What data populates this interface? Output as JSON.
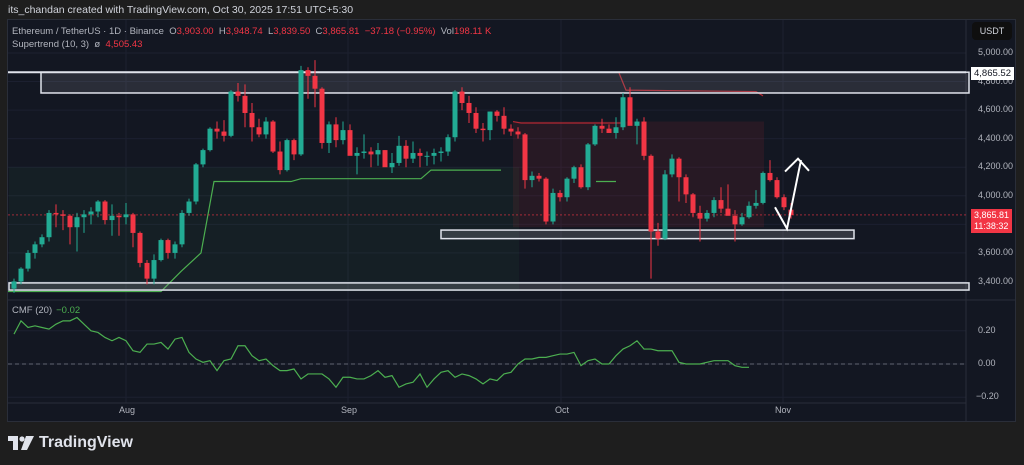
{
  "attribution": "its_chandan created with TradingView.com, Oct 30, 2025 17:51 UTC+5:30",
  "legend": {
    "symbol": "Ethereum / TetherUS · 1D · Binance",
    "o_label": "O",
    "o": "3,903.00",
    "h_label": "H",
    "h": "3,948.74",
    "l_label": "L",
    "l": "3,839.50",
    "c_label": "C",
    "c": "3,865.81",
    "change": "−37.18 (−0.95%)",
    "vol_label": "Vol",
    "vol": "198.11 K",
    "supertrend_label": "Supertrend (10, 3)",
    "supertrend_symbol": "ø",
    "supertrend_value": "4,505.43"
  },
  "cmf": {
    "label": "CMF (20)",
    "value": "−0.02"
  },
  "currency": "USDT",
  "price_axis": [
    "5,000.00",
    "4,800.00",
    "4,600.00",
    "4,400.00",
    "4,200.00",
    "4,000.00",
    "3,600.00",
    "3,400.00"
  ],
  "price_tag": "4,865.52",
  "last_price": "3,865.81",
  "countdown": "11:38:32",
  "cmf_axis": [
    "0.20",
    "0.00",
    "−0.20"
  ],
  "date_axis": [
    "Aug",
    "Sep",
    "Oct",
    "Nov"
  ],
  "logo": "TradingView",
  "colors": {
    "up": "#22ab94",
    "down": "#f23645",
    "supertrend_up": "#4caf50",
    "supertrend_down": "#b22833",
    "cmf": "#4caf50",
    "background": "#131722"
  },
  "chart_data": [
    {
      "type": "candlestick",
      "title": "Ethereum / TetherUS · 1D · Binance",
      "xlabel": "",
      "ylabel": "USDT",
      "ylim": [
        3300,
        5050
      ],
      "x_ticks": [
        "Aug",
        "Sep",
        "Oct",
        "Nov"
      ],
      "y_ticks": [
        3400,
        3600,
        4000,
        4200,
        4400,
        4600,
        4800,
        5000
      ],
      "last": {
        "open": 3903.0,
        "high": 3948.74,
        "low": 3839.5,
        "close": 3865.81,
        "change": -37.18,
        "change_pct": -0.95,
        "volume": "198.11K"
      },
      "candles": [
        [
          3350,
          3420,
          3320,
          3400
        ],
        [
          3400,
          3500,
          3380,
          3490
        ],
        [
          3490,
          3620,
          3470,
          3600
        ],
        [
          3600,
          3680,
          3560,
          3660
        ],
        [
          3660,
          3730,
          3640,
          3710
        ],
        [
          3710,
          3900,
          3680,
          3880
        ],
        [
          3880,
          3940,
          3780,
          3870
        ],
        [
          3870,
          3900,
          3760,
          3860
        ],
        [
          3860,
          3870,
          3660,
          3780
        ],
        [
          3780,
          3880,
          3610,
          3850
        ],
        [
          3850,
          3900,
          3740,
          3870
        ],
        [
          3870,
          3920,
          3800,
          3890
        ],
        [
          3890,
          3970,
          3850,
          3960
        ],
        [
          3960,
          3970,
          3800,
          3830
        ],
        [
          3830,
          3940,
          3720,
          3860
        ],
        [
          3860,
          3880,
          3720,
          3850
        ],
        [
          3850,
          3950,
          3800,
          3870
        ],
        [
          3870,
          3880,
          3640,
          3740
        ],
        [
          3740,
          3750,
          3500,
          3530
        ],
        [
          3530,
          3550,
          3380,
          3420
        ],
        [
          3420,
          3590,
          3380,
          3550
        ],
        [
          3550,
          3700,
          3540,
          3690
        ],
        [
          3690,
          3700,
          3560,
          3600
        ],
        [
          3600,
          3680,
          3560,
          3660
        ],
        [
          3660,
          3900,
          3640,
          3880
        ],
        [
          3880,
          3980,
          3860,
          3960
        ],
        [
          3960,
          4230,
          3940,
          4220
        ],
        [
          4220,
          4330,
          4200,
          4320
        ],
        [
          4320,
          4480,
          4310,
          4470
        ],
        [
          4470,
          4520,
          4400,
          4450
        ],
        [
          4450,
          4530,
          4380,
          4420
        ],
        [
          4420,
          4740,
          4410,
          4730
        ],
        [
          4730,
          4790,
          4660,
          4700
        ],
        [
          4700,
          4780,
          4480,
          4580
        ],
        [
          4580,
          4650,
          4380,
          4480
        ],
        [
          4480,
          4540,
          4410,
          4430
        ],
        [
          4430,
          4550,
          4400,
          4520
        ],
        [
          4520,
          4530,
          4300,
          4310
        ],
        [
          4310,
          4380,
          4150,
          4180
        ],
        [
          4180,
          4400,
          4170,
          4390
        ],
        [
          4390,
          4400,
          4250,
          4290
        ],
        [
          4290,
          4910,
          4280,
          4880
        ],
        [
          4880,
          4900,
          4680,
          4840
        ],
        [
          4840,
          4950,
          4620,
          4750
        ],
        [
          4750,
          4760,
          4330,
          4370
        ],
        [
          4370,
          4520,
          4300,
          4500
        ],
        [
          4500,
          4550,
          4340,
          4390
        ],
        [
          4390,
          4520,
          4360,
          4460
        ],
        [
          4460,
          4500,
          4290,
          4280
        ],
        [
          4280,
          4340,
          4150,
          4300
        ],
        [
          4300,
          4430,
          4260,
          4310
        ],
        [
          4310,
          4340,
          4200,
          4290
        ],
        [
          4290,
          4370,
          4210,
          4320
        ],
        [
          4320,
          4320,
          4240,
          4200
        ],
        [
          4200,
          4300,
          4160,
          4230
        ],
        [
          4230,
          4420,
          4210,
          4350
        ],
        [
          4350,
          4390,
          4200,
          4260
        ],
        [
          4260,
          4380,
          4230,
          4300
        ],
        [
          4300,
          4330,
          4200,
          4280
        ],
        [
          4280,
          4310,
          4210,
          4280
        ],
        [
          4280,
          4330,
          4220,
          4300
        ],
        [
          4300,
          4340,
          4240,
          4310
        ],
        [
          4310,
          4430,
          4280,
          4410
        ],
        [
          4410,
          4740,
          4380,
          4730
        ],
        [
          4730,
          4760,
          4600,
          4650
        ],
        [
          4650,
          4700,
          4510,
          4580
        ],
        [
          4580,
          4620,
          4440,
          4470
        ],
        [
          4470,
          4510,
          4380,
          4460
        ],
        [
          4460,
          4590,
          4390,
          4590
        ],
        [
          4590,
          4600,
          4520,
          4560
        ],
        [
          4560,
          4620,
          4430,
          4470
        ],
        [
          4470,
          4500,
          4420,
          4450
        ],
        [
          4450,
          4480,
          4400,
          4430
        ],
        [
          4430,
          4440,
          4050,
          4110
        ],
        [
          4110,
          4170,
          4060,
          4140
        ],
        [
          4140,
          4160,
          4100,
          4120
        ],
        [
          4120,
          4130,
          3800,
          3820
        ],
        [
          3820,
          4050,
          3800,
          4020
        ],
        [
          4020,
          4040,
          3960,
          3990
        ],
        [
          3990,
          4130,
          3960,
          4120
        ],
        [
          4120,
          4210,
          4090,
          4200
        ],
        [
          4200,
          4220,
          4050,
          4060
        ],
        [
          4060,
          4370,
          4040,
          4360
        ],
        [
          4360,
          4500,
          4350,
          4490
        ],
        [
          4490,
          4540,
          4440,
          4470
        ],
        [
          4470,
          4500,
          4450,
          4440
        ],
        [
          4440,
          4550,
          4400,
          4480
        ],
        [
          4480,
          4720,
          4460,
          4690
        ],
        [
          4690,
          4760,
          4500,
          4490
        ],
        [
          4490,
          4540,
          4360,
          4520
        ],
        [
          4520,
          4550,
          4250,
          4280
        ],
        [
          4280,
          4290,
          3420,
          3750
        ],
        [
          3750,
          3810,
          3650,
          3700
        ],
        [
          3700,
          4180,
          3690,
          4150
        ],
        [
          4150,
          4290,
          4130,
          4260
        ],
        [
          4260,
          4270,
          3960,
          4130
        ],
        [
          4130,
          4150,
          3950,
          4010
        ],
        [
          4010,
          4020,
          3850,
          3880
        ],
        [
          3880,
          3930,
          3680,
          3840
        ],
        [
          3840,
          3900,
          3820,
          3880
        ],
        [
          3880,
          3990,
          3850,
          3970
        ],
        [
          3970,
          4060,
          3880,
          3910
        ],
        [
          3910,
          4080,
          3880,
          3860
        ],
        [
          3860,
          3900,
          3680,
          3800
        ],
        [
          3800,
          3880,
          3790,
          3850
        ],
        [
          3850,
          3960,
          3840,
          3930
        ],
        [
          3930,
          4040,
          3910,
          3950
        ],
        [
          3950,
          4170,
          3940,
          4160
        ],
        [
          4160,
          4250,
          4100,
          4110
        ],
        [
          4110,
          4130,
          3980,
          3990
        ],
        [
          3990,
          4010,
          3900,
          3920
        ],
        [
          3903,
          3949,
          3840,
          3866
        ]
      ],
      "supertrend": "green support rising from ~3,330 (late Jul) to ~4,120 (mid Sep), flips red ~4,500–4,530 after Sep 22 crash, brief green ~4,100 early Oct, red ~4,750→4,550 after Oct 10, current 4,505.43",
      "annotations": [
        {
          "type": "resistance_zone",
          "from": 4720,
          "to": 4865.52
        },
        {
          "type": "support_zone",
          "from": 3700,
          "to": 3760
        },
        {
          "type": "support_zone",
          "from": 3340,
          "to": 3390
        },
        {
          "type": "arrow",
          "description": "white V-shaped arrow projecting bounce from ~3,760 to ~4,250"
        }
      ]
    },
    {
      "type": "line",
      "title": "CMF (20)",
      "ylim": [
        -0.28,
        0.3
      ],
      "y_ticks": [
        -0.2,
        0.0,
        0.2
      ],
      "current": -0.02,
      "values": [
        0.18,
        0.26,
        0.22,
        0.23,
        0.22,
        0.21,
        0.24,
        0.26,
        0.26,
        0.28,
        0.24,
        0.2,
        0.19,
        0.16,
        0.14,
        0.16,
        0.14,
        0.08,
        0.07,
        0.12,
        0.12,
        0.13,
        0.09,
        0.15,
        0.16,
        0.07,
        0.03,
        0.01,
        0.02,
        -0.04,
        0.02,
        0.03,
        0.11,
        0.11,
        0.05,
        0.02,
        0.03,
        -0.01,
        -0.04,
        -0.04,
        -0.03,
        -0.09,
        -0.06,
        -0.06,
        -0.06,
        -0.09,
        -0.14,
        -0.08,
        -0.08,
        -0.09,
        -0.09,
        -0.07,
        -0.04,
        -0.08,
        -0.07,
        -0.14,
        -0.12,
        -0.11,
        -0.06,
        -0.14,
        -0.09,
        -0.05,
        -0.04,
        -0.08,
        -0.06,
        -0.07,
        -0.09,
        -0.12,
        -0.09,
        -0.1,
        -0.06,
        -0.05,
        0.0,
        0.03,
        0.03,
        0.04,
        0.04,
        0.05,
        0.06,
        0.06,
        0.07,
        -0.01,
        0.02,
        0.03,
        0.0,
        0.0,
        0.05,
        0.09,
        0.11,
        0.14,
        0.09,
        0.09,
        0.08,
        0.08,
        0.08,
        0.01,
        0.0,
        0.0,
        0.0,
        0.01,
        0.02,
        0.02,
        0.02,
        -0.01,
        -0.02,
        -0.02
      ]
    }
  ]
}
